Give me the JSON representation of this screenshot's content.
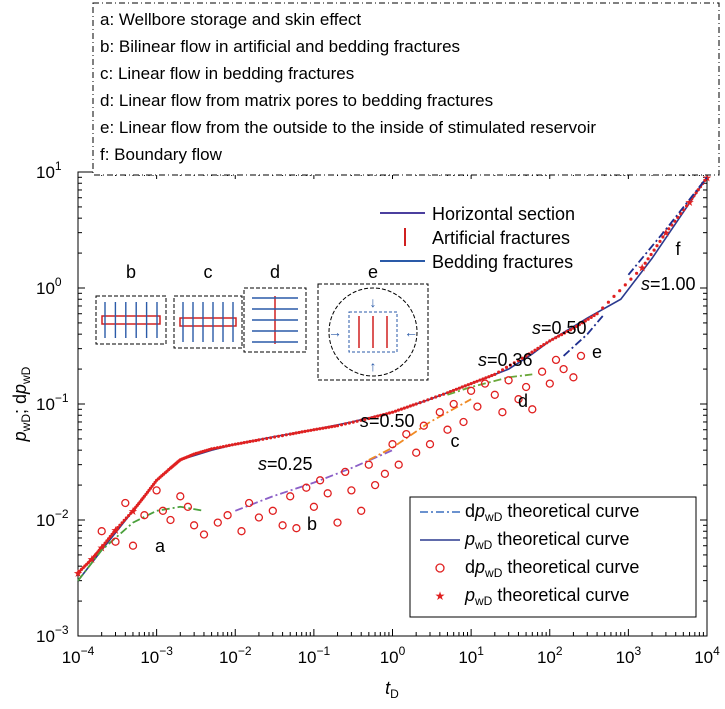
{
  "chart_data": {
    "type": "scatter",
    "x_scale": "log",
    "y_scale": "log",
    "xlim": [
      0.0001,
      10000
    ],
    "ylim": [
      0.001,
      10
    ],
    "xlabel": {
      "main": "t",
      "sub": "D"
    },
    "ylabel": {
      "p": "p",
      "p_sub": "wD",
      "sep": "; d",
      "dp": "p",
      "dp_sub": "wD"
    },
    "x_ticks": [
      {
        "base": "10",
        "exp": "−4"
      },
      {
        "base": "10",
        "exp": "−3"
      },
      {
        "base": "10",
        "exp": "−2"
      },
      {
        "base": "10",
        "exp": "−1"
      },
      {
        "base": "10",
        "exp": "0"
      },
      {
        "base": "10",
        "exp": "1"
      },
      {
        "base": "10",
        "exp": "2"
      },
      {
        "base": "10",
        "exp": "3"
      },
      {
        "base": "10",
        "exp": "4"
      }
    ],
    "y_ticks": [
      {
        "base": "10",
        "exp": "−3"
      },
      {
        "base": "10",
        "exp": "−2"
      },
      {
        "base": "10",
        "exp": "−1"
      },
      {
        "base": "10",
        "exp": "0"
      },
      {
        "base": "10",
        "exp": "1"
      }
    ],
    "flow_regimes": [
      "a: Wellbore storage and skin effect",
      "b: Bilinear flow in artificial and bedding fractures",
      "c: Linear flow in bedding fractures",
      "d: Linear flow from matrix pores to bedding fractures",
      "e: Linear flow from the outside to the inside of stimulated reservoir",
      "f: Boundary flow"
    ],
    "schematic_legend": [
      "Horizontal section",
      "Artificial fractures",
      "Bedding fractures"
    ],
    "schematic_labels": [
      "b",
      "c",
      "d",
      "e"
    ],
    "legend": [
      {
        "pre": "d",
        "p": "p",
        "sub": "wD",
        "post": " theoretical curve"
      },
      {
        "pre": "",
        "p": "p",
        "sub": "wD",
        "post": " theoretical curve"
      },
      {
        "pre": "d",
        "p": "p",
        "sub": "wD",
        "post": " theoretical curve"
      },
      {
        "pre": "",
        "p": "p",
        "sub": "wD",
        "post": " theoretical curve"
      }
    ],
    "region_labels": [
      "a",
      "b",
      "c",
      "d",
      "e",
      "f"
    ],
    "slope_labels": [
      "s=0.25",
      "s=0.50",
      "s=0.36",
      "s=0.50",
      "s=1.00"
    ],
    "series": [
      {
        "kind": "pwd_theoretical",
        "color": "#2b3a8f",
        "points": [
          [
            0.0001,
            0.003
          ],
          [
            0.0002,
            0.0055
          ],
          [
            0.0005,
            0.012
          ],
          [
            0.001,
            0.022
          ],
          [
            0.002,
            0.033
          ],
          [
            0.005,
            0.04
          ],
          [
            0.01,
            0.045
          ],
          [
            0.03,
            0.052
          ],
          [
            0.1,
            0.06
          ],
          [
            0.3,
            0.07
          ],
          [
            1,
            0.085
          ],
          [
            3,
            0.11
          ],
          [
            10,
            0.15
          ],
          [
            30,
            0.2
          ],
          [
            60,
            0.27
          ],
          [
            100,
            0.35
          ],
          [
            300,
            0.55
          ],
          [
            800,
            0.8
          ],
          [
            2000,
            1.8
          ],
          [
            5000,
            4.5
          ],
          [
            10000,
            9
          ]
        ]
      },
      {
        "kind": "pwd_measured",
        "color": "#e02020",
        "points": [
          [
            0.0001,
            0.0035
          ],
          [
            0.00015,
            0.0046
          ],
          [
            0.0002,
            0.0058
          ],
          [
            0.0003,
            0.0082
          ],
          [
            0.0005,
            0.012
          ],
          [
            0.0007,
            0.016
          ],
          [
            0.001,
            0.022
          ],
          [
            0.0015,
            0.028
          ],
          [
            0.002,
            0.033
          ],
          [
            0.003,
            0.037
          ],
          [
            0.005,
            0.041
          ],
          [
            0.01,
            0.045
          ],
          [
            0.02,
            0.049
          ],
          [
            0.05,
            0.055
          ],
          [
            0.1,
            0.06
          ],
          [
            0.2,
            0.065
          ],
          [
            0.5,
            0.075
          ],
          [
            1,
            0.085
          ],
          [
            2,
            0.1
          ],
          [
            5,
            0.125
          ],
          [
            10,
            0.15
          ],
          [
            20,
            0.18
          ],
          [
            50,
            0.26
          ],
          [
            100,
            0.35
          ],
          [
            200,
            0.45
          ],
          [
            400,
            0.6
          ],
          [
            1500,
            1.5
          ],
          [
            3000,
            3.0
          ],
          [
            6000,
            5.5
          ],
          [
            10000,
            9
          ]
        ]
      },
      {
        "kind": "dpwd_theoretical",
        "color": "#3a6fbf",
        "segments": [
          {
            "regime": "a",
            "color": "#4aa03c",
            "points": [
              [
                0.0001,
                0.003
              ],
              [
                0.0002,
                0.0055
              ],
              [
                0.0005,
                0.0095
              ],
              [
                0.001,
                0.012
              ],
              [
                0.002,
                0.013
              ],
              [
                0.004,
                0.012
              ]
            ]
          },
          {
            "regime": "b",
            "color": "#8b5fc7",
            "points": [
              [
                0.01,
                0.012
              ],
              [
                0.03,
                0.016
              ],
              [
                0.1,
                0.021
              ],
              [
                0.3,
                0.028
              ],
              [
                1,
                0.04
              ]
            ]
          },
          {
            "regime": "c",
            "color": "#f08a24",
            "points": [
              [
                0.5,
                0.033
              ],
              [
                1,
                0.042
              ],
              [
                3,
                0.07
              ],
              [
                10,
                0.11
              ]
            ]
          },
          {
            "regime": "d",
            "color": "#6aa83a",
            "points": [
              [
                5,
                0.12
              ],
              [
                10,
                0.14
              ],
              [
                30,
                0.17
              ],
              [
                60,
                0.18
              ]
            ]
          },
          {
            "regime": "e",
            "color": "#1f2f8f",
            "points": [
              [
                150,
                0.26
              ],
              [
                300,
                0.4
              ],
              [
                500,
                0.6
              ]
            ]
          },
          {
            "regime": "f",
            "color": "#1f2f8f",
            "points": [
              [
                1000,
                1.3
              ],
              [
                3000,
                3.2
              ],
              [
                10000,
                9
              ]
            ]
          }
        ]
      },
      {
        "kind": "dpwd_measured",
        "color": "#e02020",
        "points": [
          [
            0.0002,
            0.008
          ],
          [
            0.0003,
            0.0065
          ],
          [
            0.0004,
            0.014
          ],
          [
            0.0005,
            0.006
          ],
          [
            0.0007,
            0.011
          ],
          [
            0.001,
            0.018
          ],
          [
            0.0012,
            0.012
          ],
          [
            0.0015,
            0.01
          ],
          [
            0.002,
            0.016
          ],
          [
            0.0025,
            0.013
          ],
          [
            0.003,
            0.009
          ],
          [
            0.004,
            0.0075
          ],
          [
            0.006,
            0.0095
          ],
          [
            0.008,
            0.011
          ],
          [
            0.012,
            0.008
          ],
          [
            0.015,
            0.014
          ],
          [
            0.02,
            0.0105
          ],
          [
            0.03,
            0.012
          ],
          [
            0.04,
            0.009
          ],
          [
            0.05,
            0.016
          ],
          [
            0.06,
            0.0085
          ],
          [
            0.08,
            0.019
          ],
          [
            0.1,
            0.013
          ],
          [
            0.12,
            0.022
          ],
          [
            0.15,
            0.017
          ],
          [
            0.2,
            0.0095
          ],
          [
            0.25,
            0.026
          ],
          [
            0.3,
            0.018
          ],
          [
            0.4,
            0.012
          ],
          [
            0.5,
            0.03
          ],
          [
            0.6,
            0.02
          ],
          [
            0.8,
            0.025
          ],
          [
            1,
            0.045
          ],
          [
            1.2,
            0.03
          ],
          [
            1.5,
            0.055
          ],
          [
            2,
            0.038
          ],
          [
            2.5,
            0.065
          ],
          [
            3,
            0.045
          ],
          [
            4,
            0.085
          ],
          [
            5,
            0.06
          ],
          [
            6,
            0.1
          ],
          [
            8,
            0.07
          ],
          [
            10,
            0.13
          ],
          [
            12,
            0.095
          ],
          [
            15,
            0.15
          ],
          [
            20,
            0.12
          ],
          [
            25,
            0.085
          ],
          [
            30,
            0.16
          ],
          [
            40,
            0.11
          ],
          [
            50,
            0.14
          ],
          [
            60,
            0.09
          ],
          [
            80,
            0.19
          ],
          [
            100,
            0.15
          ],
          [
            120,
            0.24
          ],
          [
            150,
            0.2
          ],
          [
            200,
            0.17
          ],
          [
            250,
            0.26
          ]
        ]
      }
    ]
  }
}
